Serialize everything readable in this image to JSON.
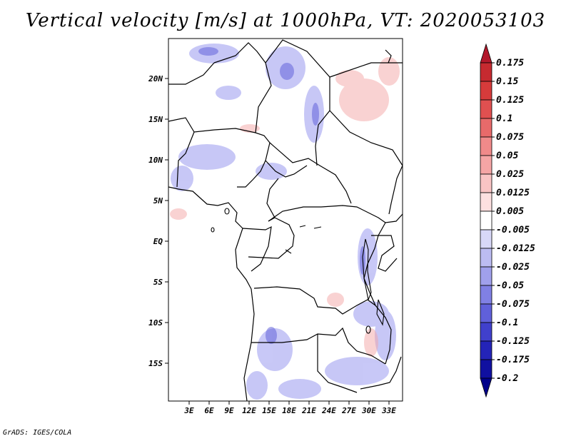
{
  "title": "Vertical velocity [m/s] at 1000hPa, VT: 2020053103",
  "footer": "GrADS: IGES/COLA",
  "lat_labels": [
    "20N",
    "15N",
    "10N",
    "5N",
    "EQ",
    "5S",
    "10S",
    "15S"
  ],
  "lon_labels": [
    "3E",
    "6E",
    "9E",
    "12E",
    "15E",
    "18E",
    "21E",
    "24E",
    "27E",
    "30E",
    "33E"
  ],
  "colorbar": {
    "labels": [
      "0.175",
      "0.15",
      "0.125",
      "0.1",
      "0.075",
      "0.05",
      "0.025",
      "0.0125",
      "0.005",
      "-0.005",
      "-0.0125",
      "-0.025",
      "-0.05",
      "-0.075",
      "-0.1",
      "-0.125",
      "-0.175",
      "-0.2"
    ],
    "colors": [
      "#b2182b",
      "#c62a30",
      "#d63b3b",
      "#e05050",
      "#e86a6a",
      "#f08a8a",
      "#f5a5a5",
      "#f9c4c4",
      "#fde0e0",
      "#ffffff",
      "#d8d8f8",
      "#bcbcf2",
      "#a0a0ec",
      "#8080e4",
      "#6060da",
      "#4040cc",
      "#2424b8",
      "#1010a0",
      "#00008a"
    ]
  }
}
